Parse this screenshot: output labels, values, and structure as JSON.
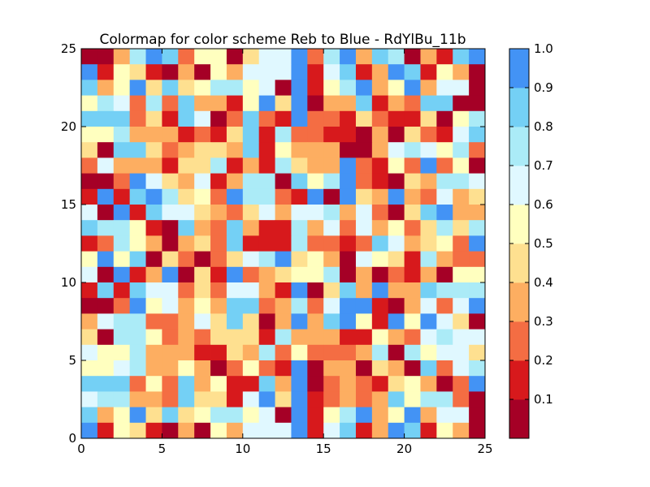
{
  "chart_data": {
    "type": "heatmap",
    "title": "Colormap for color scheme Reb to Blue - RdYlBu_11b",
    "xlabel": "",
    "ylabel": "",
    "xlim": [
      0,
      25
    ],
    "ylim": [
      0,
      25
    ],
    "x_ticks": [
      "0",
      "5",
      "10",
      "15",
      "20",
      "25"
    ],
    "y_ticks": [
      "0",
      "5",
      "10",
      "15",
      "20",
      "25"
    ],
    "colormap": "RdYlBu_11b",
    "colors": [
      "#a50026",
      "#d7191c",
      "#f46d43",
      "#fdae61",
      "#fee090",
      "#ffffbf",
      "#e0f8ff",
      "#abebf7",
      "#74d0f5",
      "#4393f5"
    ],
    "colorbar": {
      "range": [
        0.0,
        1.0
      ],
      "tick_labels": [
        "0.1",
        "0.2",
        "0.3",
        "0.4",
        "0.5",
        "0.6",
        "0.7",
        "0.8",
        "0.9",
        "1.0"
      ]
    },
    "grid": false,
    "matrix_rows_order": "top_to_bottom",
    "values": [
      [
        0.05,
        0.05,
        0.35,
        0.75,
        0.95,
        0.85,
        0.25,
        0.55,
        0.55,
        0.05,
        0.45,
        0.65,
        0.65,
        0.95,
        0.25,
        0.75,
        0.95,
        0.35,
        0.85,
        0.75,
        0.05,
        0.35,
        0.15,
        0.85,
        0.95
      ],
      [
        0.95,
        0.15,
        0.55,
        0.45,
        0.15,
        0.05,
        0.35,
        0.05,
        0.55,
        0.35,
        0.65,
        0.65,
        0.65,
        0.95,
        0.15,
        0.65,
        0.85,
        0.15,
        0.35,
        0.95,
        0.85,
        0.15,
        0.55,
        0.35,
        0.05
      ],
      [
        0.85,
        0.35,
        0.55,
        0.95,
        0.45,
        0.85,
        0.45,
        0.55,
        0.75,
        0.75,
        0.55,
        0.65,
        0.05,
        0.95,
        0.15,
        0.55,
        0.75,
        0.95,
        0.35,
        0.55,
        0.95,
        0.35,
        0.65,
        0.65,
        0.05
      ],
      [
        0.55,
        0.75,
        0.65,
        0.25,
        0.75,
        0.25,
        0.85,
        0.35,
        0.35,
        0.15,
        0.55,
        0.95,
        0.45,
        0.95,
        0.05,
        0.35,
        0.35,
        0.85,
        0.15,
        0.35,
        0.25,
        0.85,
        0.85,
        0.05,
        0.05
      ],
      [
        0.85,
        0.85,
        0.85,
        0.25,
        0.45,
        0.15,
        0.85,
        0.65,
        0.05,
        0.25,
        0.85,
        0.25,
        0.15,
        0.95,
        0.25,
        0.25,
        0.15,
        0.45,
        0.25,
        0.15,
        0.15,
        0.45,
        0.05,
        0.55,
        0.75
      ],
      [
        0.55,
        0.55,
        0.75,
        0.35,
        0.35,
        0.35,
        0.15,
        0.25,
        0.15,
        0.45,
        0.85,
        0.15,
        0.75,
        0.25,
        0.25,
        0.15,
        0.15,
        0.05,
        0.35,
        0.05,
        0.45,
        0.25,
        0.15,
        0.65,
        0.85
      ],
      [
        0.45,
        0.05,
        0.85,
        0.85,
        0.45,
        0.25,
        0.35,
        0.45,
        0.45,
        0.35,
        0.85,
        0.15,
        0.55,
        0.35,
        0.35,
        0.35,
        0.05,
        0.05,
        0.35,
        0.65,
        0.75,
        0.65,
        0.55,
        0.75,
        0.25
      ],
      [
        0.25,
        0.65,
        0.35,
        0.35,
        0.35,
        0.15,
        0.45,
        0.45,
        0.75,
        0.15,
        0.35,
        0.15,
        0.75,
        0.45,
        0.35,
        0.35,
        0.95,
        0.25,
        0.15,
        0.55,
        0.25,
        0.95,
        0.25,
        0.55,
        0.05
      ],
      [
        0.05,
        0.05,
        0.25,
        0.95,
        0.65,
        0.45,
        0.35,
        0.65,
        0.15,
        0.35,
        0.75,
        0.75,
        0.05,
        0.85,
        0.55,
        0.75,
        0.95,
        0.25,
        0.15,
        0.05,
        0.45,
        0.35,
        0.75,
        0.75,
        0.65
      ],
      [
        0.15,
        0.95,
        0.15,
        0.85,
        0.95,
        0.75,
        0.45,
        0.55,
        0.25,
        0.95,
        0.75,
        0.75,
        0.25,
        0.15,
        0.95,
        0.05,
        0.95,
        0.45,
        0.35,
        0.95,
        0.35,
        0.25,
        0.65,
        0.35,
        0.45
      ],
      [
        0.65,
        0.05,
        0.95,
        0.15,
        0.85,
        0.65,
        0.65,
        0.45,
        0.35,
        0.25,
        0.45,
        0.65,
        0.35,
        0.65,
        0.65,
        0.75,
        0.35,
        0.65,
        0.25,
        0.05,
        0.45,
        0.85,
        0.95,
        0.35,
        0.35
      ],
      [
        0.85,
        0.75,
        0.75,
        0.55,
        0.15,
        0.05,
        0.85,
        0.35,
        0.25,
        0.85,
        0.35,
        0.15,
        0.15,
        0.75,
        0.35,
        0.65,
        0.25,
        0.65,
        0.35,
        0.55,
        0.25,
        0.45,
        0.75,
        0.45,
        0.75
      ],
      [
        0.15,
        0.25,
        0.75,
        0.55,
        0.35,
        0.05,
        0.35,
        0.45,
        0.25,
        0.85,
        0.15,
        0.15,
        0.15,
        0.75,
        0.25,
        0.25,
        0.15,
        0.25,
        0.85,
        0.65,
        0.35,
        0.45,
        0.55,
        0.25,
        0.95
      ],
      [
        0.55,
        0.95,
        0.55,
        0.85,
        0.05,
        0.45,
        0.25,
        0.05,
        0.25,
        0.45,
        0.65,
        0.75,
        0.95,
        0.45,
        0.55,
        0.35,
        0.05,
        0.65,
        0.55,
        0.45,
        0.15,
        0.75,
        0.35,
        0.25,
        0.25
      ],
      [
        0.65,
        0.05,
        0.95,
        0.15,
        0.35,
        0.95,
        0.05,
        0.45,
        0.15,
        0.95,
        0.25,
        0.35,
        0.45,
        0.55,
        0.55,
        0.75,
        0.05,
        0.35,
        0.05,
        0.25,
        0.15,
        0.35,
        0.05,
        0.55,
        0.55
      ],
      [
        0.15,
        0.85,
        0.15,
        0.85,
        0.65,
        0.65,
        0.25,
        0.45,
        0.25,
        0.65,
        0.65,
        0.35,
        0.15,
        0.95,
        0.05,
        0.45,
        0.85,
        0.35,
        0.95,
        0.35,
        0.35,
        0.85,
        0.75,
        0.75,
        0.75
      ],
      [
        0.05,
        0.05,
        0.25,
        0.95,
        0.55,
        0.65,
        0.35,
        0.55,
        0.35,
        0.85,
        0.85,
        0.25,
        0.35,
        0.75,
        0.25,
        0.65,
        0.95,
        0.95,
        0.15,
        0.05,
        0.35,
        0.65,
        0.25,
        0.65,
        0.95
      ],
      [
        0.35,
        0.65,
        0.75,
        0.75,
        0.25,
        0.25,
        0.35,
        0.65,
        0.45,
        0.85,
        0.45,
        0.05,
        0.35,
        0.95,
        0.35,
        0.85,
        0.95,
        0.55,
        0.15,
        0.95,
        0.55,
        0.95,
        0.65,
        0.45,
        0.05
      ],
      [
        0.45,
        0.05,
        0.75,
        0.75,
        0.55,
        0.25,
        0.35,
        0.25,
        0.45,
        0.45,
        0.45,
        0.15,
        0.75,
        0.35,
        0.35,
        0.35,
        0.15,
        0.15,
        0.55,
        0.35,
        0.25,
        0.65,
        0.75,
        0.65,
        0.65
      ],
      [
        0.65,
        0.55,
        0.55,
        0.75,
        0.35,
        0.35,
        0.35,
        0.15,
        0.15,
        0.45,
        0.35,
        0.75,
        0.25,
        0.55,
        0.25,
        0.25,
        0.25,
        0.35,
        0.75,
        0.05,
        0.75,
        0.55,
        0.65,
        0.65,
        0.45
      ],
      [
        0.55,
        0.55,
        0.65,
        0.75,
        0.35,
        0.35,
        0.55,
        0.35,
        0.05,
        0.25,
        0.55,
        0.25,
        0.15,
        0.95,
        0.05,
        0.35,
        0.35,
        0.05,
        0.45,
        0.35,
        0.05,
        0.85,
        0.25,
        0.65,
        0.75
      ],
      [
        0.85,
        0.85,
        0.85,
        0.25,
        0.55,
        0.25,
        0.85,
        0.35,
        0.55,
        0.15,
        0.15,
        0.85,
        0.35,
        0.95,
        0.05,
        0.25,
        0.35,
        0.25,
        0.15,
        0.45,
        0.55,
        0.35,
        0.05,
        0.25,
        0.95
      ],
      [
        0.65,
        0.75,
        0.75,
        0.35,
        0.35,
        0.25,
        0.85,
        0.45,
        0.45,
        0.15,
        0.65,
        0.95,
        0.45,
        0.95,
        0.15,
        0.25,
        0.35,
        0.25,
        0.35,
        0.85,
        0.55,
        0.75,
        0.75,
        0.25,
        0.05
      ],
      [
        0.85,
        0.35,
        0.55,
        0.95,
        0.45,
        0.85,
        0.45,
        0.55,
        0.75,
        0.75,
        0.55,
        0.65,
        0.05,
        0.95,
        0.15,
        0.55,
        0.75,
        0.95,
        0.35,
        0.55,
        0.95,
        0.35,
        0.65,
        0.65,
        0.05
      ],
      [
        0.95,
        0.15,
        0.55,
        0.45,
        0.15,
        0.05,
        0.35,
        0.05,
        0.55,
        0.35,
        0.65,
        0.65,
        0.65,
        0.95,
        0.15,
        0.65,
        0.85,
        0.15,
        0.35,
        0.95,
        0.85,
        0.15,
        0.55,
        0.35,
        0.05
      ]
    ]
  }
}
